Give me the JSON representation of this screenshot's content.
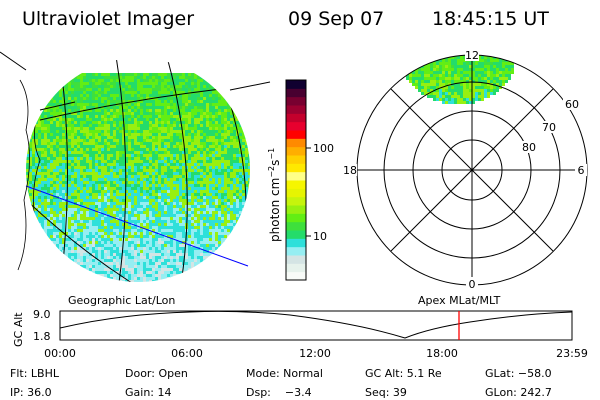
{
  "header": {
    "title": "Ultraviolet Imager",
    "date": "09 Sep 07",
    "time": "18:45:15 UT"
  },
  "colorbar": {
    "unit_label": "photon cm",
    "unit_exp1": "−2",
    "unit_s": "s",
    "unit_exp2": "−1",
    "ticks": [
      "100",
      "10"
    ],
    "colors": [
      "#f8fbf8",
      "#e6f2ec",
      "#d4e4e4",
      "#96eef2",
      "#2ee0da",
      "#24dc6a",
      "#3ee03c",
      "#62ee14",
      "#98f010",
      "#c6f40c",
      "#e6f402",
      "#f6f600",
      "#ffff88",
      "#ffe800",
      "#ffd000",
      "#ffae00",
      "#ff8a00",
      "#ff0000",
      "#e8002e",
      "#c4002c",
      "#9c0030",
      "#780030",
      "#480030",
      "#100030"
    ]
  },
  "polar": {
    "labels": {
      "top": "12",
      "bottom": "0",
      "left": "18",
      "right": "6"
    },
    "rings": [
      "60",
      "70",
      "80"
    ]
  },
  "altitude": {
    "left_title": "Geographic Lat/Lon",
    "right_title": "Apex MLat/MLT",
    "ylabel": "GC Alt",
    "ymax": "9.0",
    "ymin": "1.8",
    "xticks": [
      "00:00",
      "06:00",
      "12:00",
      "18:00",
      "23:59"
    ],
    "current_marker_color": "#ff0000"
  },
  "info": {
    "row1": [
      "Flt: LBHL",
      "Door: Open",
      "Mode: Normal",
      "GC Alt: 5.1 Re",
      "GLat: −58.0"
    ],
    "row2": [
      "IP: 36.0",
      "Gain: 14",
      "Dsp:    −3.4",
      "Seq: 39",
      "GLon: 242.7"
    ]
  }
}
